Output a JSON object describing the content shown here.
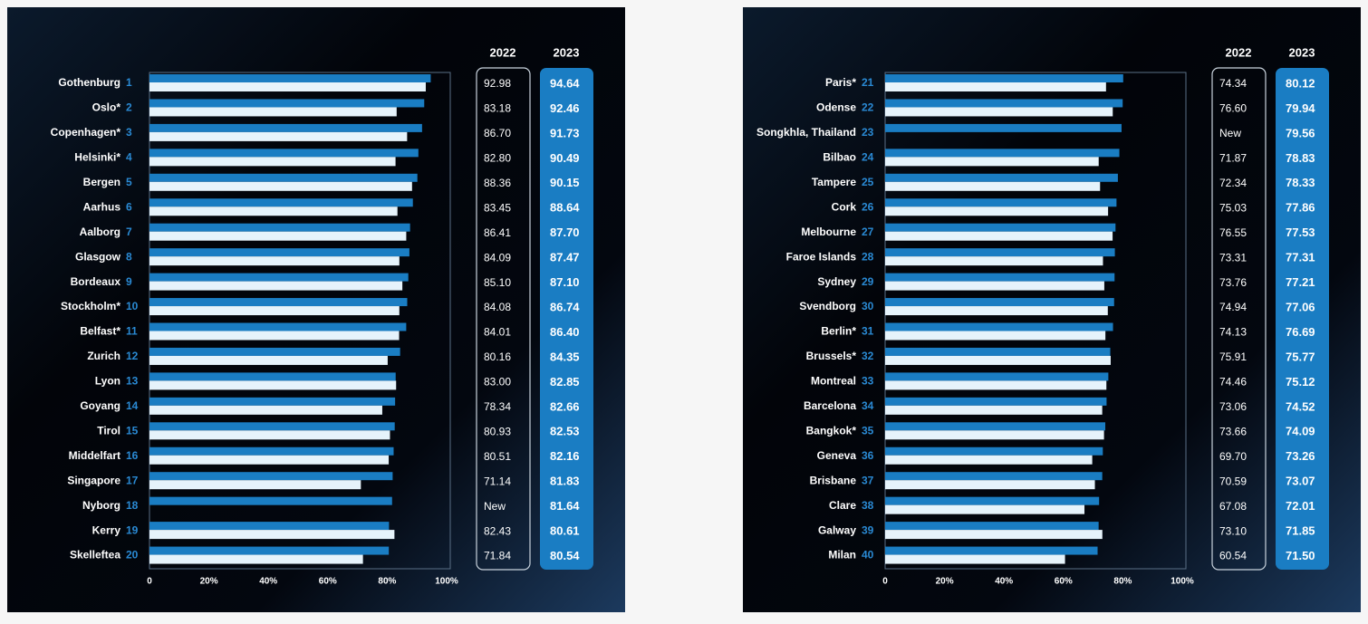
{
  "chart_data": [
    {
      "type": "bar",
      "orientation": "horizontal",
      "categories": [
        "Gothenburg",
        "Oslo*",
        "Copenhagen*",
        "Helsinki*",
        "Bergen",
        "Aarhus",
        "Aalborg",
        "Glasgow",
        "Bordeaux",
        "Stockholm*",
        "Belfast*",
        "Zurich",
        "Lyon",
        "Goyang",
        "Tirol",
        "Middelfart",
        "Singapore",
        "Nyborg",
        "Kerry",
        "Skelleftea"
      ],
      "ranks": [
        1,
        2,
        3,
        4,
        5,
        6,
        7,
        8,
        9,
        10,
        11,
        12,
        13,
        14,
        15,
        16,
        17,
        18,
        19,
        20
      ],
      "series": [
        {
          "name": "2022",
          "color": "#e6f3fb",
          "values": [
            92.98,
            83.18,
            86.7,
            82.8,
            88.36,
            83.45,
            86.41,
            84.09,
            85.1,
            84.08,
            84.01,
            80.16,
            83.0,
            78.34,
            80.93,
            80.51,
            71.14,
            null,
            82.43,
            71.84
          ],
          "value_labels": [
            "92.98",
            "83.18",
            "86.70",
            "82.80",
            "88.36",
            "83.45",
            "86.41",
            "84.09",
            "85.10",
            "84.08",
            "84.01",
            "80.16",
            "83.00",
            "78.34",
            "80.93",
            "80.51",
            "71.14",
            "New",
            "82.43",
            "71.84"
          ]
        },
        {
          "name": "2023",
          "color": "#1a7dc3",
          "values": [
            94.64,
            92.46,
            91.73,
            90.49,
            90.15,
            88.64,
            87.7,
            87.47,
            87.1,
            86.74,
            86.4,
            84.35,
            82.85,
            82.66,
            82.53,
            82.16,
            81.83,
            81.64,
            80.61,
            80.54
          ],
          "value_labels": [
            "94.64",
            "92.46",
            "91.73",
            "90.49",
            "90.15",
            "88.64",
            "87.70",
            "87.47",
            "87.10",
            "86.74",
            "86.40",
            "84.35",
            "82.85",
            "82.66",
            "82.53",
            "82.16",
            "81.83",
            "81.64",
            "80.61",
            "80.54"
          ]
        }
      ],
      "xlim": [
        0,
        100
      ],
      "xticks": [
        0,
        {
          "value": 20,
          "label": "20%"
        },
        {
          "value": 40,
          "label": "40%"
        },
        {
          "value": 60,
          "label": "60%"
        },
        {
          "value": 80,
          "label": "80%"
        },
        {
          "value": 100,
          "label": "100%"
        }
      ]
    },
    {
      "type": "bar",
      "orientation": "horizontal",
      "categories": [
        "Paris*",
        "Odense",
        "Songkhla, Thailand",
        "Bilbao",
        "Tampere",
        "Cork",
        "Melbourne",
        "Faroe Islands",
        "Sydney",
        "Svendborg",
        "Berlin*",
        "Brussels*",
        "Montreal",
        "Barcelona",
        "Bangkok*",
        "Geneva",
        "Brisbane",
        "Clare",
        "Galway",
        "Milan"
      ],
      "ranks": [
        21,
        22,
        23,
        24,
        25,
        26,
        27,
        28,
        29,
        30,
        31,
        32,
        33,
        34,
        35,
        36,
        37,
        38,
        39,
        40
      ],
      "series": [
        {
          "name": "2022",
          "color": "#e6f3fb",
          "values": [
            74.34,
            76.6,
            null,
            71.87,
            72.34,
            75.03,
            76.55,
            73.31,
            73.76,
            74.94,
            74.13,
            75.91,
            74.46,
            73.06,
            73.66,
            69.7,
            70.59,
            67.08,
            73.1,
            60.54
          ],
          "value_labels": [
            "74.34",
            "76.60",
            "New",
            "71.87",
            "72.34",
            "75.03",
            "76.55",
            "73.31",
            "73.76",
            "74.94",
            "74.13",
            "75.91",
            "74.46",
            "73.06",
            "73.66",
            "69.70",
            "70.59",
            "67.08",
            "73.10",
            "60.54"
          ]
        },
        {
          "name": "2023",
          "color": "#1a7dc3",
          "values": [
            80.12,
            79.94,
            79.56,
            78.83,
            78.33,
            77.86,
            77.53,
            77.31,
            77.21,
            77.06,
            76.69,
            75.77,
            75.12,
            74.52,
            74.09,
            73.26,
            73.07,
            72.01,
            71.85,
            71.5
          ],
          "value_labels": [
            "80.12",
            "79.94",
            "79.56",
            "78.83",
            "78.33",
            "77.86",
            "77.53",
            "77.31",
            "77.21",
            "77.06",
            "76.69",
            "75.77",
            "75.12",
            "74.52",
            "74.09",
            "73.26",
            "73.07",
            "72.01",
            "71.85",
            "71.50"
          ]
        }
      ],
      "xlim": [
        0,
        100
      ],
      "xticks": [
        0,
        {
          "value": 20,
          "label": "20%"
        },
        {
          "value": 40,
          "label": "40%"
        },
        {
          "value": 60,
          "label": "60%"
        },
        {
          "value": 80,
          "label": "80%"
        },
        {
          "value": 100,
          "label": "100%"
        }
      ]
    }
  ]
}
